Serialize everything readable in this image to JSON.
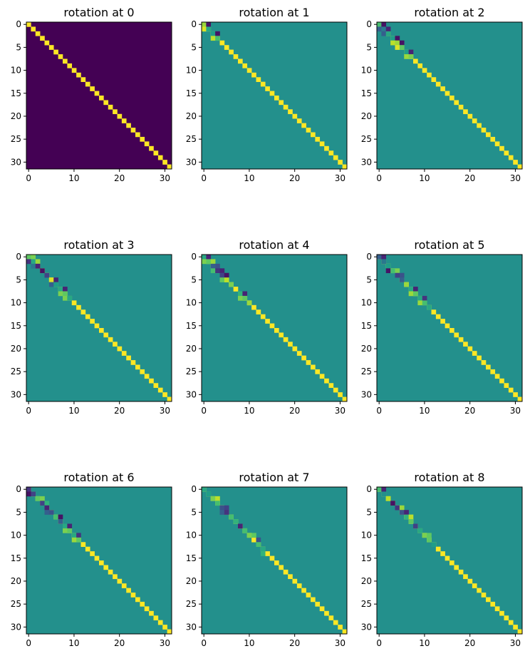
{
  "chart_data": [
    {
      "type": "heatmap",
      "title": "rotation at 0",
      "matrix_size": 32,
      "xticks": [
        0,
        10,
        20,
        30
      ],
      "yticks": [
        0,
        5,
        10,
        15,
        20,
        25,
        30
      ],
      "background_value": 0.0,
      "diagonal_value": 1.0,
      "entries": []
    },
    {
      "type": "heatmap",
      "title": "rotation at 1",
      "matrix_size": 32,
      "xticks": [
        0,
        10,
        20,
        30
      ],
      "yticks": [
        0,
        5,
        10,
        15,
        20,
        25,
        30
      ],
      "background_value": 0.5,
      "diagonal_value": 1.0,
      "entries": [
        [
          0,
          0,
          0.85
        ],
        [
          0,
          1,
          0.05
        ],
        [
          1,
          0,
          0.95
        ],
        [
          1,
          1,
          0.6
        ],
        [
          2,
          2,
          0.55
        ],
        [
          2,
          3,
          0.05
        ],
        [
          3,
          2,
          0.9
        ],
        [
          3,
          3,
          0.7
        ]
      ]
    },
    {
      "type": "heatmap",
      "title": "rotation at 2",
      "matrix_size": 32,
      "xticks": [
        0,
        10,
        20,
        30
      ],
      "yticks": [
        0,
        5,
        10,
        15,
        20,
        25,
        30
      ],
      "background_value": 0.5,
      "diagonal_value": 1.0,
      "entries": [
        [
          0,
          0,
          0.7
        ],
        [
          0,
          1,
          0.05
        ],
        [
          1,
          0,
          0.3
        ],
        [
          1,
          1,
          0.4
        ],
        [
          1,
          2,
          0.1
        ],
        [
          2,
          1,
          0.3
        ],
        [
          2,
          2,
          0.6
        ],
        [
          3,
          3,
          0.55
        ],
        [
          3,
          4,
          0.05
        ],
        [
          4,
          3,
          0.9
        ],
        [
          4,
          4,
          0.85
        ],
        [
          4,
          5,
          0.05
        ],
        [
          5,
          4,
          0.95
        ],
        [
          5,
          5,
          0.75
        ],
        [
          6,
          6,
          0.55
        ],
        [
          6,
          7,
          0.1
        ],
        [
          7,
          6,
          0.85
        ],
        [
          7,
          7,
          0.8
        ]
      ]
    },
    {
      "type": "heatmap",
      "title": "rotation at 3",
      "matrix_size": 32,
      "xticks": [
        0,
        10,
        20,
        30
      ],
      "yticks": [
        0,
        5,
        10,
        15,
        20,
        25,
        30
      ],
      "background_value": 0.5,
      "diagonal_value": 1.0,
      "entries": [
        [
          0,
          0,
          0.75
        ],
        [
          0,
          1,
          0.8
        ],
        [
          1,
          0,
          0.15
        ],
        [
          1,
          1,
          0.6
        ],
        [
          1,
          2,
          0.85
        ],
        [
          2,
          1,
          0.4
        ],
        [
          2,
          2,
          0.1
        ],
        [
          3,
          3,
          0.05
        ],
        [
          4,
          4,
          0.2
        ],
        [
          5,
          5,
          0.95
        ],
        [
          5,
          6,
          0.1
        ],
        [
          6,
          5,
          0.3
        ],
        [
          6,
          6,
          0.55
        ],
        [
          7,
          7,
          0.6
        ],
        [
          7,
          8,
          0.1
        ],
        [
          8,
          7,
          0.8
        ],
        [
          8,
          8,
          0.75
        ],
        [
          9,
          8,
          0.8
        ],
        [
          9,
          9,
          0.6
        ]
      ]
    },
    {
      "type": "heatmap",
      "title": "rotation at 4",
      "matrix_size": 32,
      "xticks": [
        0,
        10,
        20,
        30
      ],
      "yticks": [
        0,
        5,
        10,
        15,
        20,
        25,
        30
      ],
      "background_value": 0.5,
      "diagonal_value": 1.0,
      "entries": [
        [
          0,
          0,
          0.6
        ],
        [
          0,
          1,
          0.1
        ],
        [
          1,
          0,
          0.8
        ],
        [
          1,
          1,
          0.75
        ],
        [
          1,
          2,
          0.85
        ],
        [
          2,
          2,
          0.3
        ],
        [
          2,
          3,
          0.25
        ],
        [
          3,
          2,
          0.7
        ],
        [
          3,
          3,
          0.15
        ],
        [
          3,
          4,
          0.1
        ],
        [
          4,
          4,
          0.2
        ],
        [
          4,
          5,
          0.05
        ],
        [
          5,
          4,
          0.75
        ],
        [
          5,
          5,
          0.9
        ],
        [
          6,
          6,
          0.8
        ],
        [
          8,
          8,
          0.65
        ],
        [
          8,
          9,
          0.1
        ],
        [
          9,
          8,
          0.8
        ],
        [
          9,
          9,
          0.75
        ],
        [
          10,
          10,
          0.85
        ]
      ]
    },
    {
      "type": "heatmap",
      "title": "rotation at 5",
      "matrix_size": 32,
      "xticks": [
        0,
        10,
        20,
        30
      ],
      "yticks": [
        0,
        5,
        10,
        15,
        20,
        25,
        30
      ],
      "background_value": 0.5,
      "diagonal_value": 1.0,
      "entries": [
        [
          0,
          0,
          0.3
        ],
        [
          0,
          1,
          0.1
        ],
        [
          1,
          1,
          0.4
        ],
        [
          2,
          2,
          0.55
        ],
        [
          3,
          2,
          0.05
        ],
        [
          3,
          3,
          0.7
        ],
        [
          3,
          4,
          0.8
        ],
        [
          4,
          4,
          0.2
        ],
        [
          4,
          5,
          0.25
        ],
        [
          5,
          5,
          0.3
        ],
        [
          6,
          6,
          0.85
        ],
        [
          7,
          7,
          0.6
        ],
        [
          7,
          8,
          0.1
        ],
        [
          8,
          7,
          0.85
        ],
        [
          8,
          8,
          0.75
        ],
        [
          9,
          9,
          0.6
        ],
        [
          9,
          10,
          0.15
        ],
        [
          10,
          9,
          0.85
        ],
        [
          10,
          10,
          0.7
        ],
        [
          11,
          11,
          0.6
        ]
      ]
    },
    {
      "type": "heatmap",
      "title": "rotation at 6",
      "matrix_size": 32,
      "xticks": [
        0,
        10,
        20,
        30
      ],
      "yticks": [
        0,
        5,
        10,
        15,
        20,
        25,
        30
      ],
      "background_value": 0.5,
      "diagonal_value": 1.0,
      "entries": [
        [
          0,
          0,
          0.15
        ],
        [
          0,
          2,
          0.5
        ],
        [
          1,
          0,
          0.05
        ],
        [
          1,
          1,
          0.2
        ],
        [
          2,
          2,
          0.75
        ],
        [
          2,
          3,
          0.8
        ],
        [
          3,
          3,
          0.2
        ],
        [
          3,
          4,
          0.65
        ],
        [
          4,
          4,
          0.1
        ],
        [
          5,
          4,
          0.3
        ],
        [
          5,
          5,
          0.25
        ],
        [
          6,
          6,
          0.7
        ],
        [
          6,
          7,
          0.05
        ],
        [
          7,
          7,
          0.3
        ],
        [
          8,
          8,
          0.6
        ],
        [
          8,
          9,
          0.1
        ],
        [
          9,
          8,
          0.8
        ],
        [
          9,
          9,
          0.75
        ],
        [
          10,
          10,
          0.6
        ],
        [
          10,
          11,
          0.15
        ],
        [
          11,
          10,
          0.85
        ],
        [
          11,
          11,
          0.75
        ]
      ]
    },
    {
      "type": "heatmap",
      "title": "rotation at 7",
      "matrix_size": 32,
      "xticks": [
        0,
        10,
        20,
        30
      ],
      "yticks": [
        0,
        5,
        10,
        15,
        20,
        25,
        30
      ],
      "background_value": 0.5,
      "diagonal_value": 1.0,
      "entries": [
        [
          0,
          0,
          0.6
        ],
        [
          1,
          1,
          0.55
        ],
        [
          2,
          2,
          0.8
        ],
        [
          2,
          3,
          0.9
        ],
        [
          3,
          3,
          0.7
        ],
        [
          4,
          4,
          0.25
        ],
        [
          4,
          5,
          0.2
        ],
        [
          5,
          4,
          0.3
        ],
        [
          5,
          5,
          0.15
        ],
        [
          6,
          6,
          0.7
        ],
        [
          7,
          7,
          0.65
        ],
        [
          8,
          8,
          0.1
        ],
        [
          9,
          9,
          0.7
        ],
        [
          10,
          10,
          0.8
        ],
        [
          10,
          11,
          0.75
        ],
        [
          11,
          12,
          0.25
        ],
        [
          12,
          12,
          0.7
        ],
        [
          13,
          13,
          0.6
        ],
        [
          14,
          13,
          0.65
        ]
      ]
    },
    {
      "type": "heatmap",
      "title": "rotation at 8",
      "matrix_size": 32,
      "xticks": [
        0,
        10,
        20,
        30
      ],
      "yticks": [
        0,
        5,
        10,
        15,
        20,
        25,
        30
      ],
      "background_value": 0.5,
      "diagonal_value": 1.0,
      "entries": [
        [
          0,
          0,
          0.7
        ],
        [
          0,
          1,
          0.1
        ],
        [
          1,
          1,
          0.5
        ],
        [
          2,
          2,
          0.9
        ],
        [
          3,
          3,
          0.05
        ],
        [
          4,
          4,
          0.15
        ],
        [
          4,
          5,
          0.85
        ],
        [
          5,
          5,
          0.25
        ],
        [
          5,
          6,
          0.1
        ],
        [
          6,
          6,
          0.65
        ],
        [
          6,
          7,
          0.9
        ],
        [
          7,
          7,
          0.75
        ],
        [
          8,
          8,
          0.2
        ],
        [
          9,
          9,
          0.6
        ],
        [
          10,
          10,
          0.8
        ],
        [
          10,
          11,
          0.75
        ],
        [
          11,
          11,
          0.75
        ],
        [
          12,
          12,
          0.55
        ]
      ]
    }
  ],
  "colors": {
    "colormap": "viridis",
    "background": "#ffffff",
    "axis": "#000000"
  }
}
